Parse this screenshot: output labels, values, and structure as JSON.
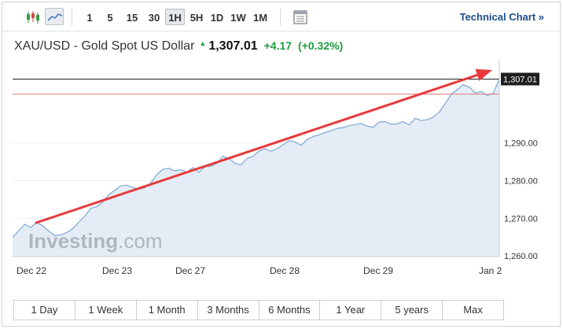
{
  "toolbar": {
    "timeframes": [
      "1",
      "5",
      "15",
      "30",
      "1H",
      "5H",
      "1D",
      "1W",
      "1M"
    ],
    "active_timeframe": "1H",
    "technical_chart_label": "Technical Chart »"
  },
  "instrument": {
    "name": "XAU/USD - Gold Spot US Dollar",
    "price": "1,307.01",
    "change": "+4.17",
    "change_pct": "(+0.32%)",
    "up_color": "#1e9e3e"
  },
  "watermark": {
    "text_main": "Investing",
    "text_suffix": ".com"
  },
  "ranges": [
    "1 Day",
    "1 Week",
    "1 Month",
    "3 Months",
    "6 Months",
    "1 Year",
    "5 years",
    "Max"
  ],
  "chart_data": {
    "type": "area",
    "x_labels": [
      "Dec 22",
      "Dec 23",
      "Dec 27",
      "Dec 28",
      "Dec 29",
      "Jan 2"
    ],
    "y_ticks": [
      1260,
      1270,
      1280,
      1290
    ],
    "y_tick_labels": [
      "1,260.00",
      "1,270.00",
      "1,280.00",
      "1,290.00"
    ],
    "ylim": [
      1259.8,
      1311.5
    ],
    "last_price_label": "1,307.01",
    "last_price": 1307.01,
    "prev_close": 1303.0,
    "colors": {
      "line": "#7da7d3",
      "fill": "#e4ecf5",
      "prev_close_line": "#e07a7a",
      "price_line": "#222222",
      "arrow": "#e8393b"
    },
    "series": [
      {
        "values": [
          1265.0,
          1266.6,
          1268.4,
          1267.5,
          1268.9,
          1268.0,
          1266.6,
          1265.4,
          1265.6,
          1266.2,
          1267.2,
          1268.9,
          1270.5,
          1272.6,
          1273.1,
          1274.3,
          1276.3,
          1277.4,
          1278.6,
          1278.8,
          1278.2,
          1277.7,
          1278.1,
          1279.4,
          1281.6,
          1283.0,
          1283.3,
          1282.6,
          1282.9,
          1282.2,
          1283.5,
          1282.2,
          1283.7,
          1283.8,
          1284.6,
          1286.5,
          1285.9,
          1284.6,
          1284.2,
          1285.9,
          1286.5,
          1287.8,
          1288.5,
          1287.8,
          1288.5,
          1289.5,
          1290.6,
          1290.3,
          1289.4,
          1290.9,
          1291.7,
          1292.2,
          1292.8,
          1293.3,
          1293.9,
          1294.1,
          1294.6,
          1294.9,
          1295.2,
          1294.5,
          1294.2,
          1295.6,
          1295.7,
          1295.0,
          1295.1,
          1295.7,
          1294.8,
          1296.6,
          1296.0,
          1296.2,
          1296.9,
          1298.2,
          1300.5,
          1303.0,
          1304.2,
          1305.5,
          1304.9,
          1303.3,
          1303.7,
          1302.6,
          1303.3,
          1307.01
        ]
      }
    ]
  }
}
